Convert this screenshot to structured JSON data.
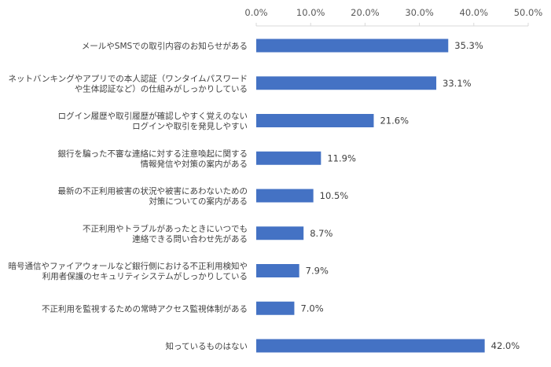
{
  "chart_data": {
    "type": "bar",
    "orientation": "horizontal",
    "categories": [
      [
        "メールやSMSでの取引内容のお知らせがある"
      ],
      [
        "ネットバンキングやアプリでの本人認証（ワンタイムパスワード",
        "や生体認証など）の仕組みがしっかりしている"
      ],
      [
        "ログイン履歴や取引履歴が確認しやすく覚えのない",
        "ログインや取引を発見しやすい"
      ],
      [
        "銀行を騙った不審な連絡に対する注意喚起に関する",
        "情報発信や対策の案内がある"
      ],
      [
        "最新の不正利用被害の状況や被害にあわないための",
        "対策についての案内がある"
      ],
      [
        "不正利用やトラブルがあったときにいつでも",
        "連絡できる問い合わせ先がある"
      ],
      [
        "暗号通信やファイアウォールなど銀行側における不正利用検知や",
        "利用者保護のセキュリティシステムがしっかりしている"
      ],
      [
        "不正利用を監視するための常時アクセス監視体制がある"
      ],
      [
        "知っているものはない"
      ]
    ],
    "values": [
      35.3,
      33.1,
      21.6,
      11.9,
      10.5,
      8.7,
      7.9,
      7.0,
      42.0
    ],
    "value_labels": [
      "35.3%",
      "33.1%",
      "21.6%",
      "11.9%",
      "10.5%",
      "8.7%",
      "7.9%",
      "7.0%",
      "42.0%"
    ],
    "xlim": [
      0,
      50
    ],
    "xticks": [
      0,
      10,
      20,
      30,
      40,
      50
    ],
    "xtick_labels": [
      "0.0%",
      "10.0%",
      "20.0%",
      "30.0%",
      "40.0%",
      "50.0%"
    ],
    "axis_position": "top",
    "grid": false,
    "legend": "none",
    "bar_color": "#4472C4",
    "axis_color": "#D9D9D9"
  }
}
